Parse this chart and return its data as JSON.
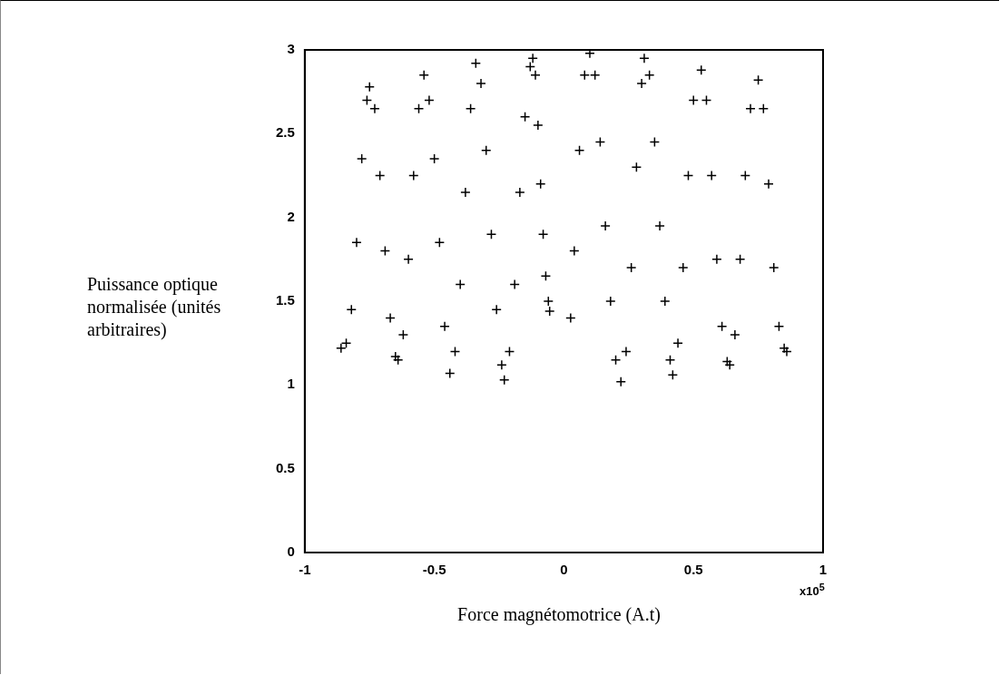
{
  "chart_data": {
    "type": "scatter",
    "ylabel": "Puissance optique normalisée (unités arbitraires)",
    "xlabel": "Force magnétomotrice (A.t)",
    "annotations": [
      "x10$^{5}$"
    ],
    "xlim": [
      -1,
      1
    ],
    "xticks": [
      -1,
      -0.5,
      0,
      0.5,
      1
    ],
    "ylim": [
      0,
      3
    ],
    "yticks": [
      0,
      0.5,
      1,
      1.5,
      2,
      2.5,
      3
    ],
    "grid": false,
    "legend": false,
    "marker": "cross",
    "series": [
      {
        "color": "#000000",
        "x": [
          -0.86,
          -0.84,
          -0.82,
          -0.8,
          -0.78,
          -0.76,
          -0.75,
          -0.73,
          -0.71,
          -0.69,
          -0.67,
          -0.65,
          -0.64,
          -0.62,
          -0.6,
          -0.58,
          -0.56,
          -0.54,
          -0.52,
          -0.5,
          -0.48,
          -0.46,
          -0.44,
          -0.42,
          -0.4,
          -0.38,
          -0.36,
          -0.34,
          -0.32,
          -0.3,
          -0.28,
          -0.26,
          -0.24,
          -0.23,
          -0.21,
          -0.19,
          -0.17,
          -0.15,
          -0.13,
          -0.12,
          -0.11,
          -0.1,
          -0.09,
          -0.08,
          -0.07,
          -0.06,
          -0.055,
          0.026,
          0.04,
          0.06,
          0.08,
          0.1,
          0.12,
          0.14,
          0.16,
          0.18,
          0.2,
          0.22,
          0.24,
          0.26,
          0.28,
          0.3,
          0.31,
          0.33,
          0.35,
          0.37,
          0.39,
          0.41,
          0.42,
          0.44,
          0.46,
          0.48,
          0.5,
          0.53,
          0.55,
          0.57,
          0.59,
          0.61,
          0.63,
          0.64,
          0.66,
          0.68,
          0.7,
          0.72,
          0.75,
          0.77,
          0.79,
          0.81,
          0.83,
          0.85,
          0.86
        ],
        "values": [
          1.22,
          1.25,
          1.45,
          1.85,
          2.35,
          2.7,
          2.78,
          2.65,
          2.25,
          1.8,
          1.4,
          1.17,
          1.15,
          1.3,
          1.75,
          2.25,
          2.65,
          2.85,
          2.7,
          2.35,
          1.85,
          1.35,
          1.07,
          1.2,
          1.6,
          2.15,
          2.65,
          2.92,
          2.8,
          2.4,
          1.9,
          1.45,
          1.12,
          1.03,
          1.2,
          1.6,
          2.15,
          2.6,
          2.9,
          2.95,
          2.85,
          2.55,
          2.2,
          1.9,
          1.65,
          1.5,
          1.44,
          1.4,
          1.8,
          2.4,
          2.85,
          2.98,
          2.85,
          2.45,
          1.95,
          1.5,
          1.15,
          1.02,
          1.2,
          1.7,
          2.3,
          2.8,
          2.95,
          2.85,
          2.45,
          1.95,
          1.5,
          1.15,
          1.06,
          1.25,
          1.7,
          2.25,
          2.7,
          2.88,
          2.7,
          2.25,
          1.75,
          1.35,
          1.14,
          1.12,
          1.3,
          1.75,
          2.25,
          2.65,
          2.82,
          2.65,
          2.2,
          1.7,
          1.35,
          1.22,
          1.2
        ]
      }
    ]
  }
}
